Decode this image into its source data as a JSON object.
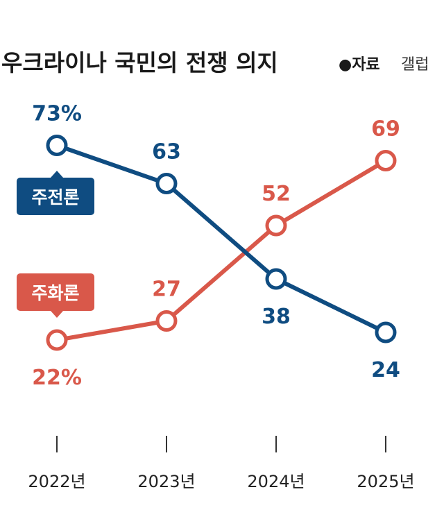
{
  "chart_data": {
    "type": "line",
    "title": "우크라이나 국민의 전쟁 의지",
    "source_label": "●자료",
    "source_value": "갤럽",
    "categories": [
      "2022년",
      "2023년",
      "2024년",
      "2025년"
    ],
    "ylim": [
      0,
      100
    ],
    "series": [
      {
        "name": "주전론",
        "values": [
          73,
          63,
          38,
          24
        ],
        "labels": [
          "73%",
          "63",
          "38",
          "24"
        ],
        "color": "#0f4c81"
      },
      {
        "name": "주화론",
        "values": [
          22,
          27,
          52,
          69
        ],
        "labels": [
          "22%",
          "27",
          "52",
          "69"
        ],
        "color": "#d9584a"
      }
    ]
  }
}
